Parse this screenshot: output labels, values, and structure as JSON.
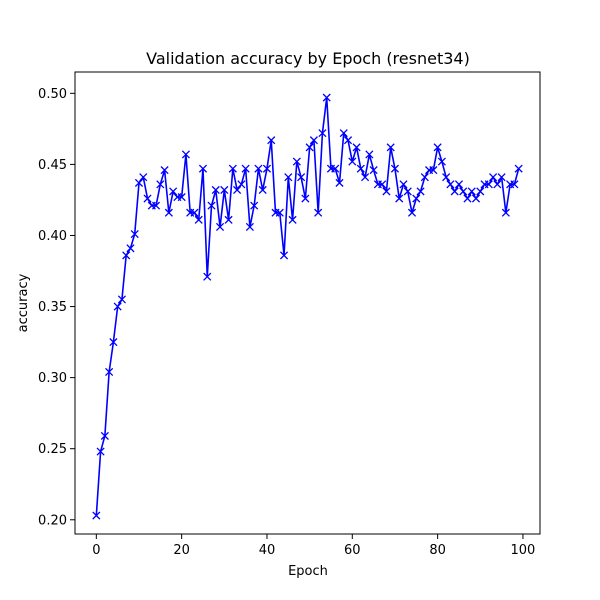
{
  "chart_data": {
    "type": "line",
    "title": "Validation accuracy by Epoch (resnet34)",
    "xlabel": "Epoch",
    "ylabel": "accuracy",
    "xlim": [
      -5,
      104
    ],
    "ylim": [
      0.19,
      0.515
    ],
    "xticks": [
      0,
      20,
      40,
      60,
      80,
      100
    ],
    "yticks": [
      0.2,
      0.25,
      0.3,
      0.35,
      0.4,
      0.45,
      0.5
    ],
    "xtick_labels": [
      "0",
      "20",
      "40",
      "60",
      "80",
      "100"
    ],
    "ytick_labels": [
      "0.20",
      "0.25",
      "0.30",
      "0.35",
      "0.40",
      "0.45",
      "0.50"
    ],
    "grid": false,
    "marker": "x",
    "series": [
      {
        "color": "#0000ff",
        "x": [
          0,
          1,
          2,
          3,
          4,
          5,
          6,
          7,
          8,
          9,
          10,
          11,
          12,
          13,
          14,
          15,
          16,
          17,
          18,
          19,
          20,
          21,
          22,
          23,
          24,
          25,
          26,
          27,
          28,
          29,
          30,
          31,
          32,
          33,
          34,
          35,
          36,
          37,
          38,
          39,
          40,
          41,
          42,
          43,
          44,
          45,
          46,
          47,
          48,
          49,
          50,
          51,
          52,
          53,
          54,
          55,
          56,
          57,
          58,
          59,
          60,
          61,
          62,
          63,
          64,
          65,
          66,
          67,
          68,
          69,
          70,
          71,
          72,
          73,
          74,
          75,
          76,
          77,
          78,
          79,
          80,
          81,
          82,
          83,
          84,
          85,
          86,
          87,
          88,
          89,
          90,
          91,
          92,
          93,
          94,
          95,
          96,
          97,
          98,
          99
        ],
        "y": [
          0.203,
          0.248,
          0.259,
          0.304,
          0.325,
          0.35,
          0.355,
          0.386,
          0.391,
          0.401,
          0.437,
          0.441,
          0.426,
          0.421,
          0.421,
          0.436,
          0.446,
          0.416,
          0.431,
          0.427,
          0.427,
          0.457,
          0.416,
          0.416,
          0.411,
          0.447,
          0.371,
          0.421,
          0.432,
          0.406,
          0.432,
          0.411,
          0.447,
          0.432,
          0.436,
          0.447,
          0.406,
          0.421,
          0.447,
          0.432,
          0.447,
          0.467,
          0.416,
          0.416,
          0.386,
          0.441,
          0.411,
          0.452,
          0.441,
          0.426,
          0.462,
          0.467,
          0.416,
          0.472,
          0.497,
          0.447,
          0.447,
          0.437,
          0.472,
          0.467,
          0.452,
          0.462,
          0.447,
          0.441,
          0.457,
          0.446,
          0.436,
          0.436,
          0.431,
          0.462,
          0.447,
          0.426,
          0.436,
          0.431,
          0.416,
          0.426,
          0.431,
          0.441,
          0.446,
          0.446,
          0.462,
          0.452,
          0.441,
          0.436,
          0.431,
          0.436,
          0.431,
          0.426,
          0.431,
          0.426,
          0.431,
          0.436,
          0.436,
          0.441,
          0.436,
          0.441,
          0.416,
          0.436,
          0.436,
          0.447
        ]
      }
    ]
  }
}
